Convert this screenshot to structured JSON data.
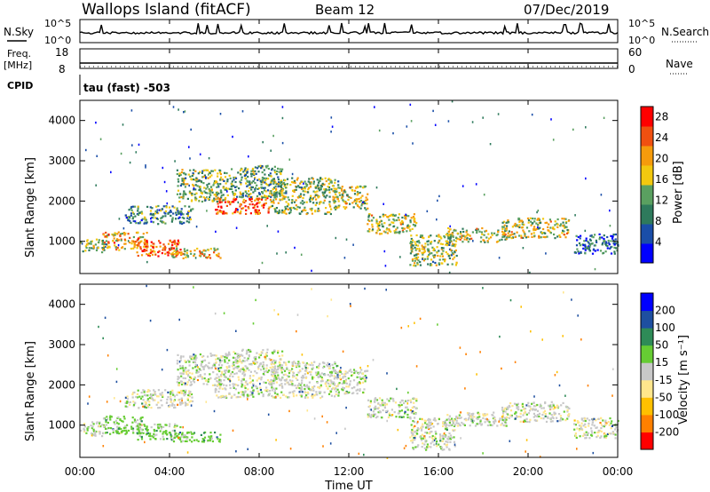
{
  "header": {
    "station": "Wallops Island (fitACF)",
    "beam": "Beam 12",
    "date": "07/Dec/2019"
  },
  "strips": {
    "nsky_label": "N.Sky",
    "nsky_ticks": [
      "10^5",
      "10^0"
    ],
    "nsearch_label": "N.Search",
    "nsearch_ticks": [
      "10^5",
      "10^0"
    ],
    "freq_label": "Freq.",
    "freq_unit": "[MHz]",
    "freq_ticks": [
      "18",
      "8"
    ],
    "nave_label": "Nave",
    "nave_ticks": [
      "60",
      "0"
    ],
    "cpid_label": "CPID",
    "cpid_value": "tau (fast) -503"
  },
  "colors": {
    "axis": "#000000",
    "power_scale": [
      "#0000ff",
      "#1a4ea8",
      "#2e7a5c",
      "#5aa060",
      "#f2c80f",
      "#f59b0c",
      "#f05010",
      "#ff0000"
    ],
    "velocity_scale": [
      "#ff0000",
      "#ff8000",
      "#ffc000",
      "#ffe68c",
      "#c8c8c8",
      "#66cc33",
      "#2e8b57",
      "#1e4fa0",
      "#0000ff"
    ]
  },
  "chart_data": [
    {
      "type": "heatmap",
      "name": "power-panel",
      "ylabel": "Slant Range [km]",
      "y_ticks": [
        1000,
        2000,
        3000,
        4000
      ],
      "ylim": [
        200,
        4500
      ],
      "xlim_hours": [
        0,
        24
      ],
      "colorbar": {
        "label": "Power [dB]",
        "ticks": [
          "4",
          "8",
          "12",
          "16",
          "20",
          "24",
          "28"
        ],
        "range": [
          0,
          30
        ]
      },
      "echo_regions": [
        {
          "t0": 0.0,
          "t1": 1.2,
          "r0": 750,
          "r1": 1100,
          "value": 14
        },
        {
          "t0": 1.0,
          "t1": 3.0,
          "r0": 800,
          "r1": 1250,
          "value": 20
        },
        {
          "t0": 2.5,
          "t1": 4.5,
          "r0": 650,
          "r1": 1050,
          "value": 24
        },
        {
          "t0": 4.0,
          "t1": 6.3,
          "r0": 600,
          "r1": 850,
          "value": 18
        },
        {
          "t0": 2.0,
          "t1": 5.0,
          "r0": 1450,
          "r1": 1900,
          "value": 10
        },
        {
          "t0": 4.3,
          "t1": 6.5,
          "r0": 2000,
          "r1": 2800,
          "value": 14
        },
        {
          "t0": 6.0,
          "t1": 8.5,
          "r0": 1700,
          "r1": 2100,
          "value": 24
        },
        {
          "t0": 6.5,
          "t1": 9.0,
          "r0": 2100,
          "r1": 2900,
          "value": 12
        },
        {
          "t0": 8.5,
          "t1": 11.5,
          "r0": 1700,
          "r1": 2600,
          "value": 14
        },
        {
          "t0": 11.3,
          "t1": 12.8,
          "r0": 1800,
          "r1": 2400,
          "value": 16
        },
        {
          "t0": 12.8,
          "t1": 15.0,
          "r0": 1200,
          "r1": 1700,
          "value": 16
        },
        {
          "t0": 14.7,
          "t1": 16.8,
          "r0": 400,
          "r1": 1200,
          "value": 14
        },
        {
          "t0": 16.3,
          "t1": 19.0,
          "r0": 1000,
          "r1": 1350,
          "value": 16
        },
        {
          "t0": 18.8,
          "t1": 21.8,
          "r0": 1100,
          "r1": 1600,
          "value": 16
        },
        {
          "t0": 22.0,
          "t1": 24.0,
          "r0": 700,
          "r1": 1200,
          "value": 8
        }
      ]
    },
    {
      "type": "heatmap",
      "name": "velocity-panel",
      "ylabel": "Slant Range [km]",
      "y_ticks": [
        1000,
        2000,
        3000,
        4000
      ],
      "ylim": [
        200,
        4500
      ],
      "xlim_hours": [
        0,
        24
      ],
      "x_ticks": [
        "00:00",
        "04:00",
        "08:00",
        "12:00",
        "16:00",
        "20:00",
        "00:00"
      ],
      "xlabel": "Time UT",
      "colorbar": {
        "label": "Velocity [m s⁻¹]",
        "ticks": [
          "-200",
          "-100",
          "-50",
          "-15",
          "15",
          "50",
          "100",
          "200"
        ],
        "range": [
          -250,
          250
        ]
      },
      "echo_regions": [
        {
          "t0": 0.0,
          "t1": 1.2,
          "r0": 750,
          "r1": 1100,
          "value": 0
        },
        {
          "t0": 1.0,
          "t1": 3.0,
          "r0": 800,
          "r1": 1250,
          "value": 30
        },
        {
          "t0": 2.5,
          "t1": 4.5,
          "r0": 650,
          "r1": 1050,
          "value": 30
        },
        {
          "t0": 4.0,
          "t1": 6.3,
          "r0": 600,
          "r1": 850,
          "value": 30
        },
        {
          "t0": 2.0,
          "t1": 5.0,
          "r0": 1450,
          "r1": 1900,
          "value": 0
        },
        {
          "t0": 4.3,
          "t1": 6.5,
          "r0": 2000,
          "r1": 2800,
          "value": 0
        },
        {
          "t0": 6.0,
          "t1": 8.5,
          "r0": 1700,
          "r1": 2100,
          "value": 0
        },
        {
          "t0": 6.5,
          "t1": 9.0,
          "r0": 2100,
          "r1": 2900,
          "value": 0
        },
        {
          "t0": 8.5,
          "t1": 11.5,
          "r0": 1700,
          "r1": 2600,
          "value": 0
        },
        {
          "t0": 11.3,
          "t1": 12.8,
          "r0": 1800,
          "r1": 2400,
          "value": 0
        },
        {
          "t0": 12.8,
          "t1": 15.0,
          "r0": 1200,
          "r1": 1700,
          "value": 0
        },
        {
          "t0": 14.7,
          "t1": 16.8,
          "r0": 400,
          "r1": 1200,
          "value": 0
        },
        {
          "t0": 16.3,
          "t1": 19.0,
          "r0": 1000,
          "r1": 1350,
          "value": 0
        },
        {
          "t0": 18.8,
          "t1": 21.8,
          "r0": 1100,
          "r1": 1600,
          "value": 0
        },
        {
          "t0": 22.0,
          "t1": 24.0,
          "r0": 700,
          "r1": 1200,
          "value": 0
        }
      ]
    }
  ]
}
